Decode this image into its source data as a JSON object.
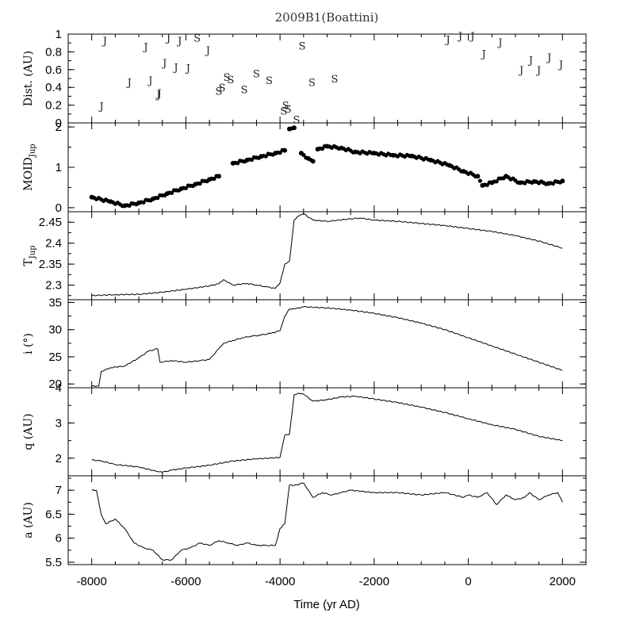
{
  "chart_data": {
    "type": "line",
    "title": "2009B1(Boattini)",
    "xlabel": "Time (yr AD)",
    "xlim": [
      -8500,
      2500
    ],
    "xticks": [
      -8000,
      -6000,
      -4000,
      -2000,
      0,
      2000
    ],
    "panels": [
      {
        "id": "dist",
        "ylabel": "Dist. (AU)",
        "ylim": [
          0,
          1
        ],
        "yticks": [
          0,
          0.2,
          0.4,
          0.6,
          0.8,
          1
        ],
        "ytick_labels": [
          "0",
          "0.2",
          "0.4",
          "0.6",
          "0.8",
          "1"
        ],
        "kind": "markers",
        "markers": [
          {
            "x": -7790,
            "y": 0.19,
            "label": "J"
          },
          {
            "x": -7720,
            "y": 0.93,
            "label": "J"
          },
          {
            "x": -7200,
            "y": 0.46,
            "label": "J"
          },
          {
            "x": -6850,
            "y": 0.86,
            "label": "J"
          },
          {
            "x": -6750,
            "y": 0.48,
            "label": "J"
          },
          {
            "x": -6580,
            "y": 0.32,
            "label": "J"
          },
          {
            "x": -6560,
            "y": 0.34,
            "label": "J"
          },
          {
            "x": -6450,
            "y": 0.68,
            "label": "J"
          },
          {
            "x": -6370,
            "y": 0.96,
            "label": "J"
          },
          {
            "x": -6210,
            "y": 0.63,
            "label": "J"
          },
          {
            "x": -6130,
            "y": 0.93,
            "label": "J"
          },
          {
            "x": -5950,
            "y": 0.62,
            "label": "J"
          },
          {
            "x": -5760,
            "y": 0.96,
            "label": "S"
          },
          {
            "x": -5530,
            "y": 0.82,
            "label": "J"
          },
          {
            "x": -5300,
            "y": 0.36,
            "label": "S"
          },
          {
            "x": -5230,
            "y": 0.4,
            "label": "S"
          },
          {
            "x": -5130,
            "y": 0.52,
            "label": "S"
          },
          {
            "x": -5050,
            "y": 0.49,
            "label": "S"
          },
          {
            "x": -4760,
            "y": 0.38,
            "label": "S"
          },
          {
            "x": -4500,
            "y": 0.56,
            "label": "S"
          },
          {
            "x": -4230,
            "y": 0.48,
            "label": "S"
          },
          {
            "x": -3920,
            "y": 0.14,
            "label": "S"
          },
          {
            "x": -3880,
            "y": 0.2,
            "label": "S"
          },
          {
            "x": -3830,
            "y": 0.16,
            "label": "S"
          },
          {
            "x": -3650,
            "y": 0.04,
            "label": "S"
          },
          {
            "x": -3530,
            "y": 0.87,
            "label": "S"
          },
          {
            "x": -3320,
            "y": 0.46,
            "label": "S"
          },
          {
            "x": -2840,
            "y": 0.5,
            "label": "S"
          },
          {
            "x": -430,
            "y": 0.94,
            "label": "J"
          },
          {
            "x": -170,
            "y": 0.98,
            "label": "J"
          },
          {
            "x": 90,
            "y": 0.98,
            "label": "J"
          },
          {
            "x": 330,
            "y": 0.78,
            "label": "J"
          },
          {
            "x": 680,
            "y": 0.91,
            "label": "J"
          },
          {
            "x": 1130,
            "y": 0.6,
            "label": "J"
          },
          {
            "x": 1330,
            "y": 0.71,
            "label": "J"
          },
          {
            "x": 1500,
            "y": 0.6,
            "label": "J"
          },
          {
            "x": 1720,
            "y": 0.74,
            "label": "J"
          },
          {
            "x": 1970,
            "y": 0.66,
            "label": "J"
          }
        ]
      },
      {
        "id": "moid",
        "ylabel": "MOID",
        "ylabel_sub": "Jup",
        "ylim": [
          -0.1,
          2.1
        ],
        "yticks": [
          0,
          1,
          2
        ],
        "ytick_labels": [
          "0",
          "1",
          "2"
        ],
        "kind": "dots",
        "x": [
          -8000,
          -7600,
          -7300,
          -7000,
          -6700,
          -6400,
          -6100,
          -5800,
          -5500,
          -5300,
          -5000,
          -4700,
          -4400,
          -4100,
          -3900,
          -3800,
          -3700,
          -3550,
          -3400,
          -3300,
          -3200,
          -3000,
          -2700,
          -2400,
          -2000,
          -1600,
          -1200,
          -800,
          -400,
          -100,
          200,
          300,
          500,
          800,
          1100,
          1400,
          1700,
          2000
        ],
        "y": [
          0.26,
          0.15,
          0.05,
          0.12,
          0.22,
          0.35,
          0.47,
          0.58,
          0.7,
          0.78,
          1.1,
          1.18,
          1.27,
          1.35,
          1.42,
          1.95,
          1.98,
          1.35,
          1.22,
          1.15,
          1.45,
          1.52,
          1.48,
          1.38,
          1.35,
          1.3,
          1.28,
          1.18,
          1.05,
          0.9,
          0.78,
          0.55,
          0.62,
          0.78,
          0.62,
          0.65,
          0.6,
          0.66
        ]
      },
      {
        "id": "tjup",
        "ylabel": "T",
        "ylabel_sub": "Jup",
        "ylim": [
          2.265,
          2.475
        ],
        "yticks": [
          2.3,
          2.35,
          2.4,
          2.45
        ],
        "ytick_labels": [
          "2.3",
          "2.35",
          "2.4",
          "2.45"
        ],
        "kind": "line",
        "x": [
          -8000,
          -7500,
          -7000,
          -6500,
          -6000,
          -5500,
          -5300,
          -5200,
          -5000,
          -4700,
          -4500,
          -4300,
          -4100,
          -4000,
          -3900,
          -3800,
          -3700,
          -3600,
          -3500,
          -3300,
          -3000,
          -2500,
          -2300,
          -2000,
          -1500,
          -1000,
          -500,
          0,
          500,
          1000,
          1500,
          2000
        ],
        "y": [
          2.275,
          2.277,
          2.278,
          2.283,
          2.29,
          2.298,
          2.303,
          2.313,
          2.3,
          2.304,
          2.3,
          2.296,
          2.292,
          2.305,
          2.35,
          2.357,
          2.455,
          2.465,
          2.47,
          2.455,
          2.452,
          2.458,
          2.46,
          2.455,
          2.452,
          2.447,
          2.442,
          2.435,
          2.428,
          2.418,
          2.405,
          2.388
        ]
      },
      {
        "id": "incl",
        "ylabel": "i (°)",
        "ylim": [
          19.3,
          35.5
        ],
        "yticks": [
          20,
          25,
          30,
          35
        ],
        "ytick_labels": [
          "20",
          "25",
          "30",
          "35"
        ],
        "kind": "line",
        "x": [
          -8000,
          -7850,
          -7800,
          -7600,
          -7300,
          -7000,
          -6800,
          -6600,
          -6550,
          -6300,
          -6000,
          -5700,
          -5500,
          -5300,
          -5200,
          -5000,
          -4800,
          -4600,
          -4400,
          -4200,
          -4000,
          -3900,
          -3800,
          -3700,
          -3500,
          -3000,
          -2500,
          -2000,
          -1500,
          -1000,
          -500,
          0,
          500,
          1000,
          1500,
          2000
        ],
        "y": [
          19.6,
          19.6,
          22.3,
          23.0,
          23.3,
          24.8,
          26.0,
          26.5,
          24.0,
          24.3,
          24.0,
          24.3,
          24.5,
          26.5,
          27.5,
          28.0,
          28.5,
          28.8,
          29.0,
          29.3,
          29.8,
          32.5,
          33.8,
          33.8,
          34.2,
          34.0,
          33.6,
          33.0,
          32.2,
          31.2,
          30.0,
          28.5,
          27.0,
          25.5,
          24.0,
          22.5
        ]
      },
      {
        "id": "q",
        "ylabel": "q (AU)",
        "ylim": [
          1.5,
          4.0
        ],
        "yticks": [
          2,
          3,
          4
        ],
        "ytick_labels": [
          "2",
          "3",
          "4"
        ],
        "kind": "line",
        "x": [
          -8000,
          -7800,
          -7500,
          -7000,
          -6600,
          -6500,
          -6300,
          -6000,
          -5500,
          -5000,
          -4500,
          -4000,
          -3900,
          -3800,
          -3700,
          -3600,
          -3500,
          -3300,
          -3000,
          -2700,
          -2400,
          -2000,
          -1500,
          -1000,
          -500,
          0,
          500,
          1000,
          1500,
          2000
        ],
        "y": [
          1.95,
          1.92,
          1.82,
          1.75,
          1.62,
          1.6,
          1.66,
          1.72,
          1.8,
          1.92,
          1.98,
          2.02,
          2.65,
          2.68,
          3.8,
          3.85,
          3.82,
          3.62,
          3.66,
          3.74,
          3.76,
          3.68,
          3.58,
          3.45,
          3.3,
          3.12,
          2.95,
          2.82,
          2.62,
          2.5
        ]
      },
      {
        "id": "a",
        "ylabel": "a (AU)",
        "ylim": [
          5.45,
          7.3
        ],
        "yticks": [
          5.5,
          6,
          6.5,
          7
        ],
        "ytick_labels": [
          "5.5",
          "6",
          "6.5",
          "7"
        ],
        "kind": "line",
        "x": [
          -8000,
          -7900,
          -7800,
          -7700,
          -7500,
          -7300,
          -7100,
          -6900,
          -6700,
          -6500,
          -6300,
          -6100,
          -5900,
          -5700,
          -5500,
          -5300,
          -5100,
          -4900,
          -4700,
          -4500,
          -4300,
          -4100,
          -4000,
          -3900,
          -3800,
          -3700,
          -3500,
          -3300,
          -3100,
          -2900,
          -2700,
          -2500,
          -2000,
          -1500,
          -1000,
          -500,
          -100,
          0,
          200,
          400,
          600,
          800,
          1000,
          1200,
          1300,
          1500,
          1700,
          1900,
          2000
        ],
        "y": [
          7.0,
          7.0,
          6.5,
          6.3,
          6.4,
          6.2,
          5.9,
          5.8,
          5.75,
          5.55,
          5.55,
          5.75,
          5.8,
          5.9,
          5.85,
          5.95,
          5.9,
          5.85,
          5.9,
          5.85,
          5.85,
          5.85,
          6.2,
          6.3,
          7.1,
          7.1,
          7.15,
          6.85,
          6.95,
          6.9,
          6.95,
          7.0,
          6.95,
          6.95,
          6.9,
          6.95,
          6.85,
          6.9,
          6.85,
          6.95,
          6.7,
          6.9,
          6.8,
          6.85,
          6.95,
          6.8,
          6.9,
          6.95,
          6.75
        ]
      }
    ]
  }
}
